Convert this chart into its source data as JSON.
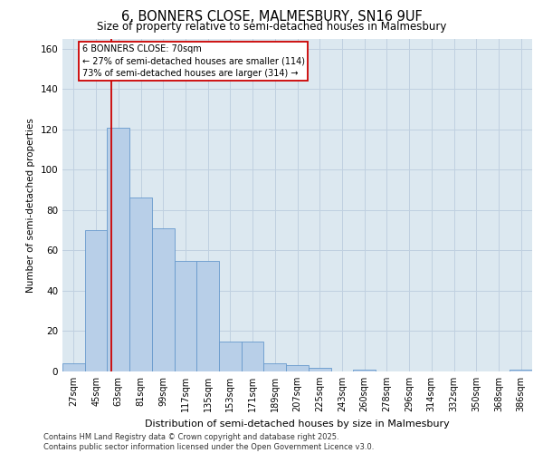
{
  "title": "6, BONNERS CLOSE, MALMESBURY, SN16 9UF",
  "subtitle": "Size of property relative to semi-detached houses in Malmesbury",
  "xlabel": "Distribution of semi-detached houses by size in Malmesbury",
  "ylabel": "Number of semi-detached properties",
  "categories": [
    "27sqm",
    "45sqm",
    "63sqm",
    "81sqm",
    "99sqm",
    "117sqm",
    "135sqm",
    "153sqm",
    "171sqm",
    "189sqm",
    "207sqm",
    "225sqm",
    "243sqm",
    "260sqm",
    "278sqm",
    "296sqm",
    "314sqm",
    "332sqm",
    "350sqm",
    "368sqm",
    "386sqm"
  ],
  "values": [
    4,
    70,
    121,
    86,
    71,
    55,
    55,
    15,
    15,
    4,
    3,
    2,
    0,
    1,
    0,
    0,
    0,
    0,
    0,
    0,
    1
  ],
  "bar_color": "#b8cfe8",
  "bar_edge_color": "#6699cc",
  "highlight_line_color": "#cc0000",
  "highlight_line_xindex": 2,
  "annotation_line1": "6 BONNERS CLOSE: 70sqm",
  "annotation_line2": "← 27% of semi-detached houses are smaller (114)",
  "annotation_line3": "73% of semi-detached houses are larger (314) →",
  "annotation_box_edge_color": "#cc0000",
  "ylim": [
    0,
    165
  ],
  "yticks": [
    0,
    20,
    40,
    60,
    80,
    100,
    120,
    140,
    160
  ],
  "grid_color": "#c0d0e0",
  "background_color": "#dce8f0",
  "footer_text": "Contains HM Land Registry data © Crown copyright and database right 2025.\nContains public sector information licensed under the Open Government Licence v3.0.",
  "title_fontsize": 10.5,
  "subtitle_fontsize": 8.5,
  "ylabel_fontsize": 7.5,
  "xlabel_fontsize": 8.0,
  "tick_fontsize": 7.0,
  "ytick_fontsize": 7.5,
  "annotation_fontsize": 7.0,
  "footer_fontsize": 6.0
}
